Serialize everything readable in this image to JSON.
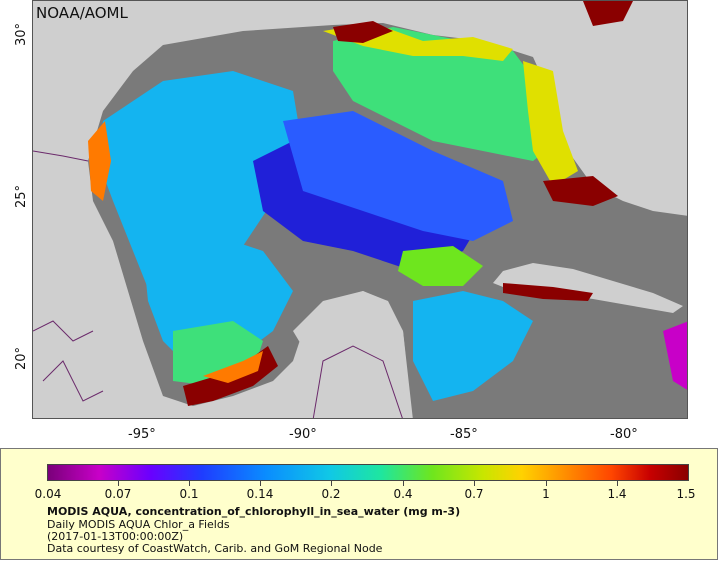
{
  "credit": "NOAA/AOML",
  "axes": {
    "x_ticks": [
      "-95°",
      "-90°",
      "-85°",
      "-80°"
    ],
    "y_ticks": [
      "30°",
      "25°",
      "20°"
    ]
  },
  "colorbar": {
    "labels": [
      "0.04",
      "0.07",
      "0.1",
      "0.14",
      "0.2",
      "0.4",
      "0.7",
      "1",
      "1.4",
      "1.5"
    ],
    "colors": [
      "#7a007a",
      "#c800c8",
      "#1f3cff",
      "#0a8cff",
      "#1ee6a0",
      "#6ee61e",
      "#ffd200",
      "#ff4600",
      "#c80000",
      "#8a0000"
    ]
  },
  "legend": {
    "title": "MODIS AQUA, concentration_of_chlorophyll_in_sea_water (mg m-3)",
    "line1": "Daily MODIS AQUA Chlor_a Fields",
    "line2": "(2017-01-13T00:00:00Z)",
    "line3": "Data courtesy of CoastWatch, Carib. and GoM Regional Node"
  },
  "map_colors": {
    "land": "#cfcfcf",
    "nodata": "#7a7a7a",
    "border": "#6b2a6b",
    "high": "#8a0000",
    "orange": "#ff7a00",
    "yellow": "#e0e000",
    "green": "#3ee07a",
    "cyan": "#14b4f0",
    "blue": "#2a5cff",
    "deepblue": "#2020d8"
  }
}
